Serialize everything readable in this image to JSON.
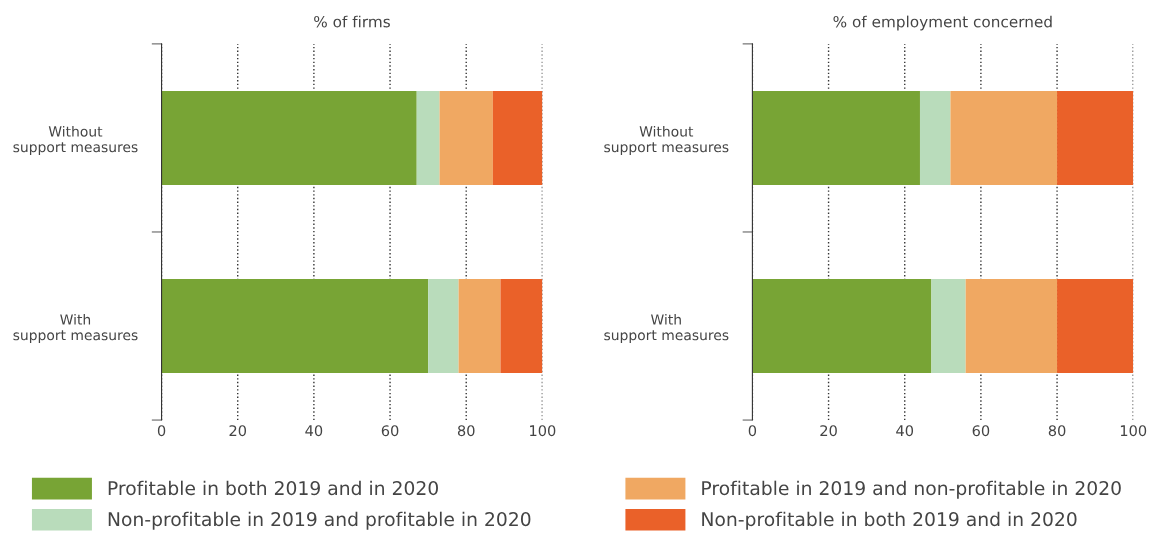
{
  "chart_data": [
    {
      "type": "bar",
      "orientation": "horizontal",
      "stacked": true,
      "title": "% of firms",
      "categories": [
        "Without\nsupport measures",
        "With\nsupport measures"
      ],
      "series": [
        {
          "name": "Profitable in both 2019 and in 2020",
          "color": "#78a435",
          "values": [
            67,
            70
          ]
        },
        {
          "name": "Non-profitable in 2019 and profitable in 2020",
          "color": "#b9dcbb",
          "values": [
            6,
            8
          ]
        },
        {
          "name": "Profitable in 2019 and non-profitable in 2020",
          "color": "#f0a862",
          "values": [
            14,
            11
          ]
        },
        {
          "name": "Non-profitable in both 2019 and in 2020",
          "color": "#ea6129",
          "values": [
            13,
            11
          ]
        }
      ],
      "xlim": [
        0,
        100
      ],
      "xticks": [
        0,
        20,
        40,
        60,
        80,
        100
      ],
      "grid": "x",
      "legend": "bottom"
    },
    {
      "type": "bar",
      "orientation": "horizontal",
      "stacked": true,
      "title": "% of employment concerned",
      "categories": [
        "Without\nsupport measures",
        "With\nsupport measures"
      ],
      "series": [
        {
          "name": "Profitable in both 2019 and in 2020",
          "color": "#78a435",
          "values": [
            44,
            47
          ]
        },
        {
          "name": "Non-profitable in 2019 and profitable in 2020",
          "color": "#b9dcbb",
          "values": [
            8,
            9
          ]
        },
        {
          "name": "Profitable in 2019 and non-profitable in 2020",
          "color": "#f0a862",
          "values": [
            28,
            24
          ]
        },
        {
          "name": "Non-profitable in both 2019 and in 2020",
          "color": "#ea6129",
          "values": [
            20,
            20
          ]
        }
      ],
      "xlim": [
        0,
        100
      ],
      "xticks": [
        0,
        20,
        40,
        60,
        80,
        100
      ],
      "grid": "x",
      "legend": "bottom"
    }
  ]
}
